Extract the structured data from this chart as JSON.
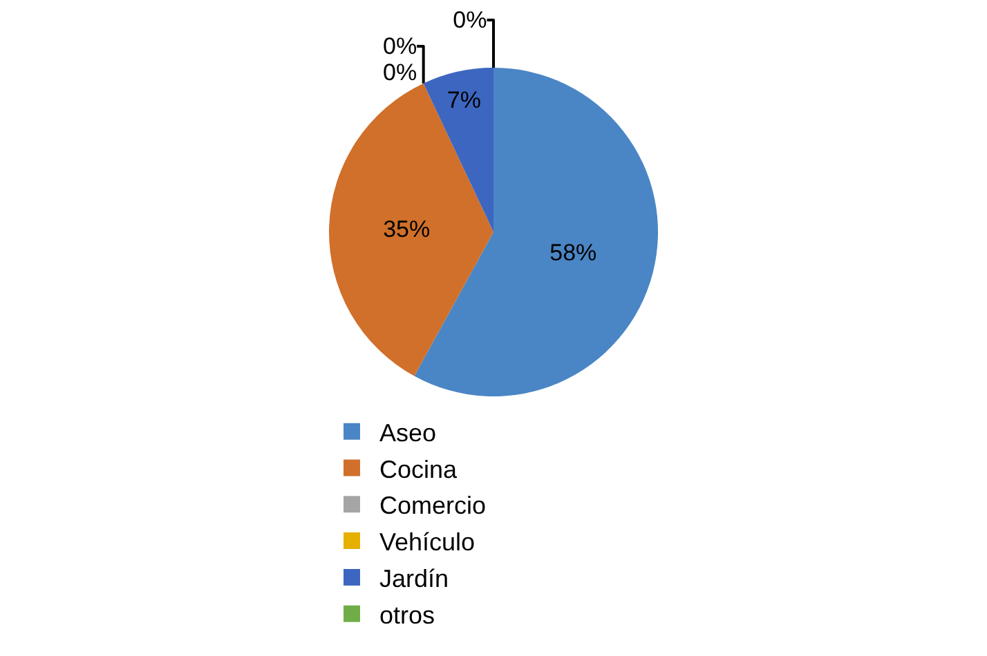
{
  "chart_data": {
    "type": "pie",
    "categories": [
      "Aseo",
      "Cocina",
      "Comercio",
      "Vehículo",
      "Jardín",
      "otros"
    ],
    "values": [
      58,
      35,
      0,
      0,
      7,
      0
    ],
    "value_labels": [
      "58%",
      "35%",
      "0%",
      "0%",
      "7%",
      "0%"
    ],
    "colors": [
      "#4a86c5",
      "#d0702a",
      "#a5a5a5",
      "#e6b000",
      "#3d66c0",
      "#70ad47"
    ],
    "legend": "bottom"
  }
}
